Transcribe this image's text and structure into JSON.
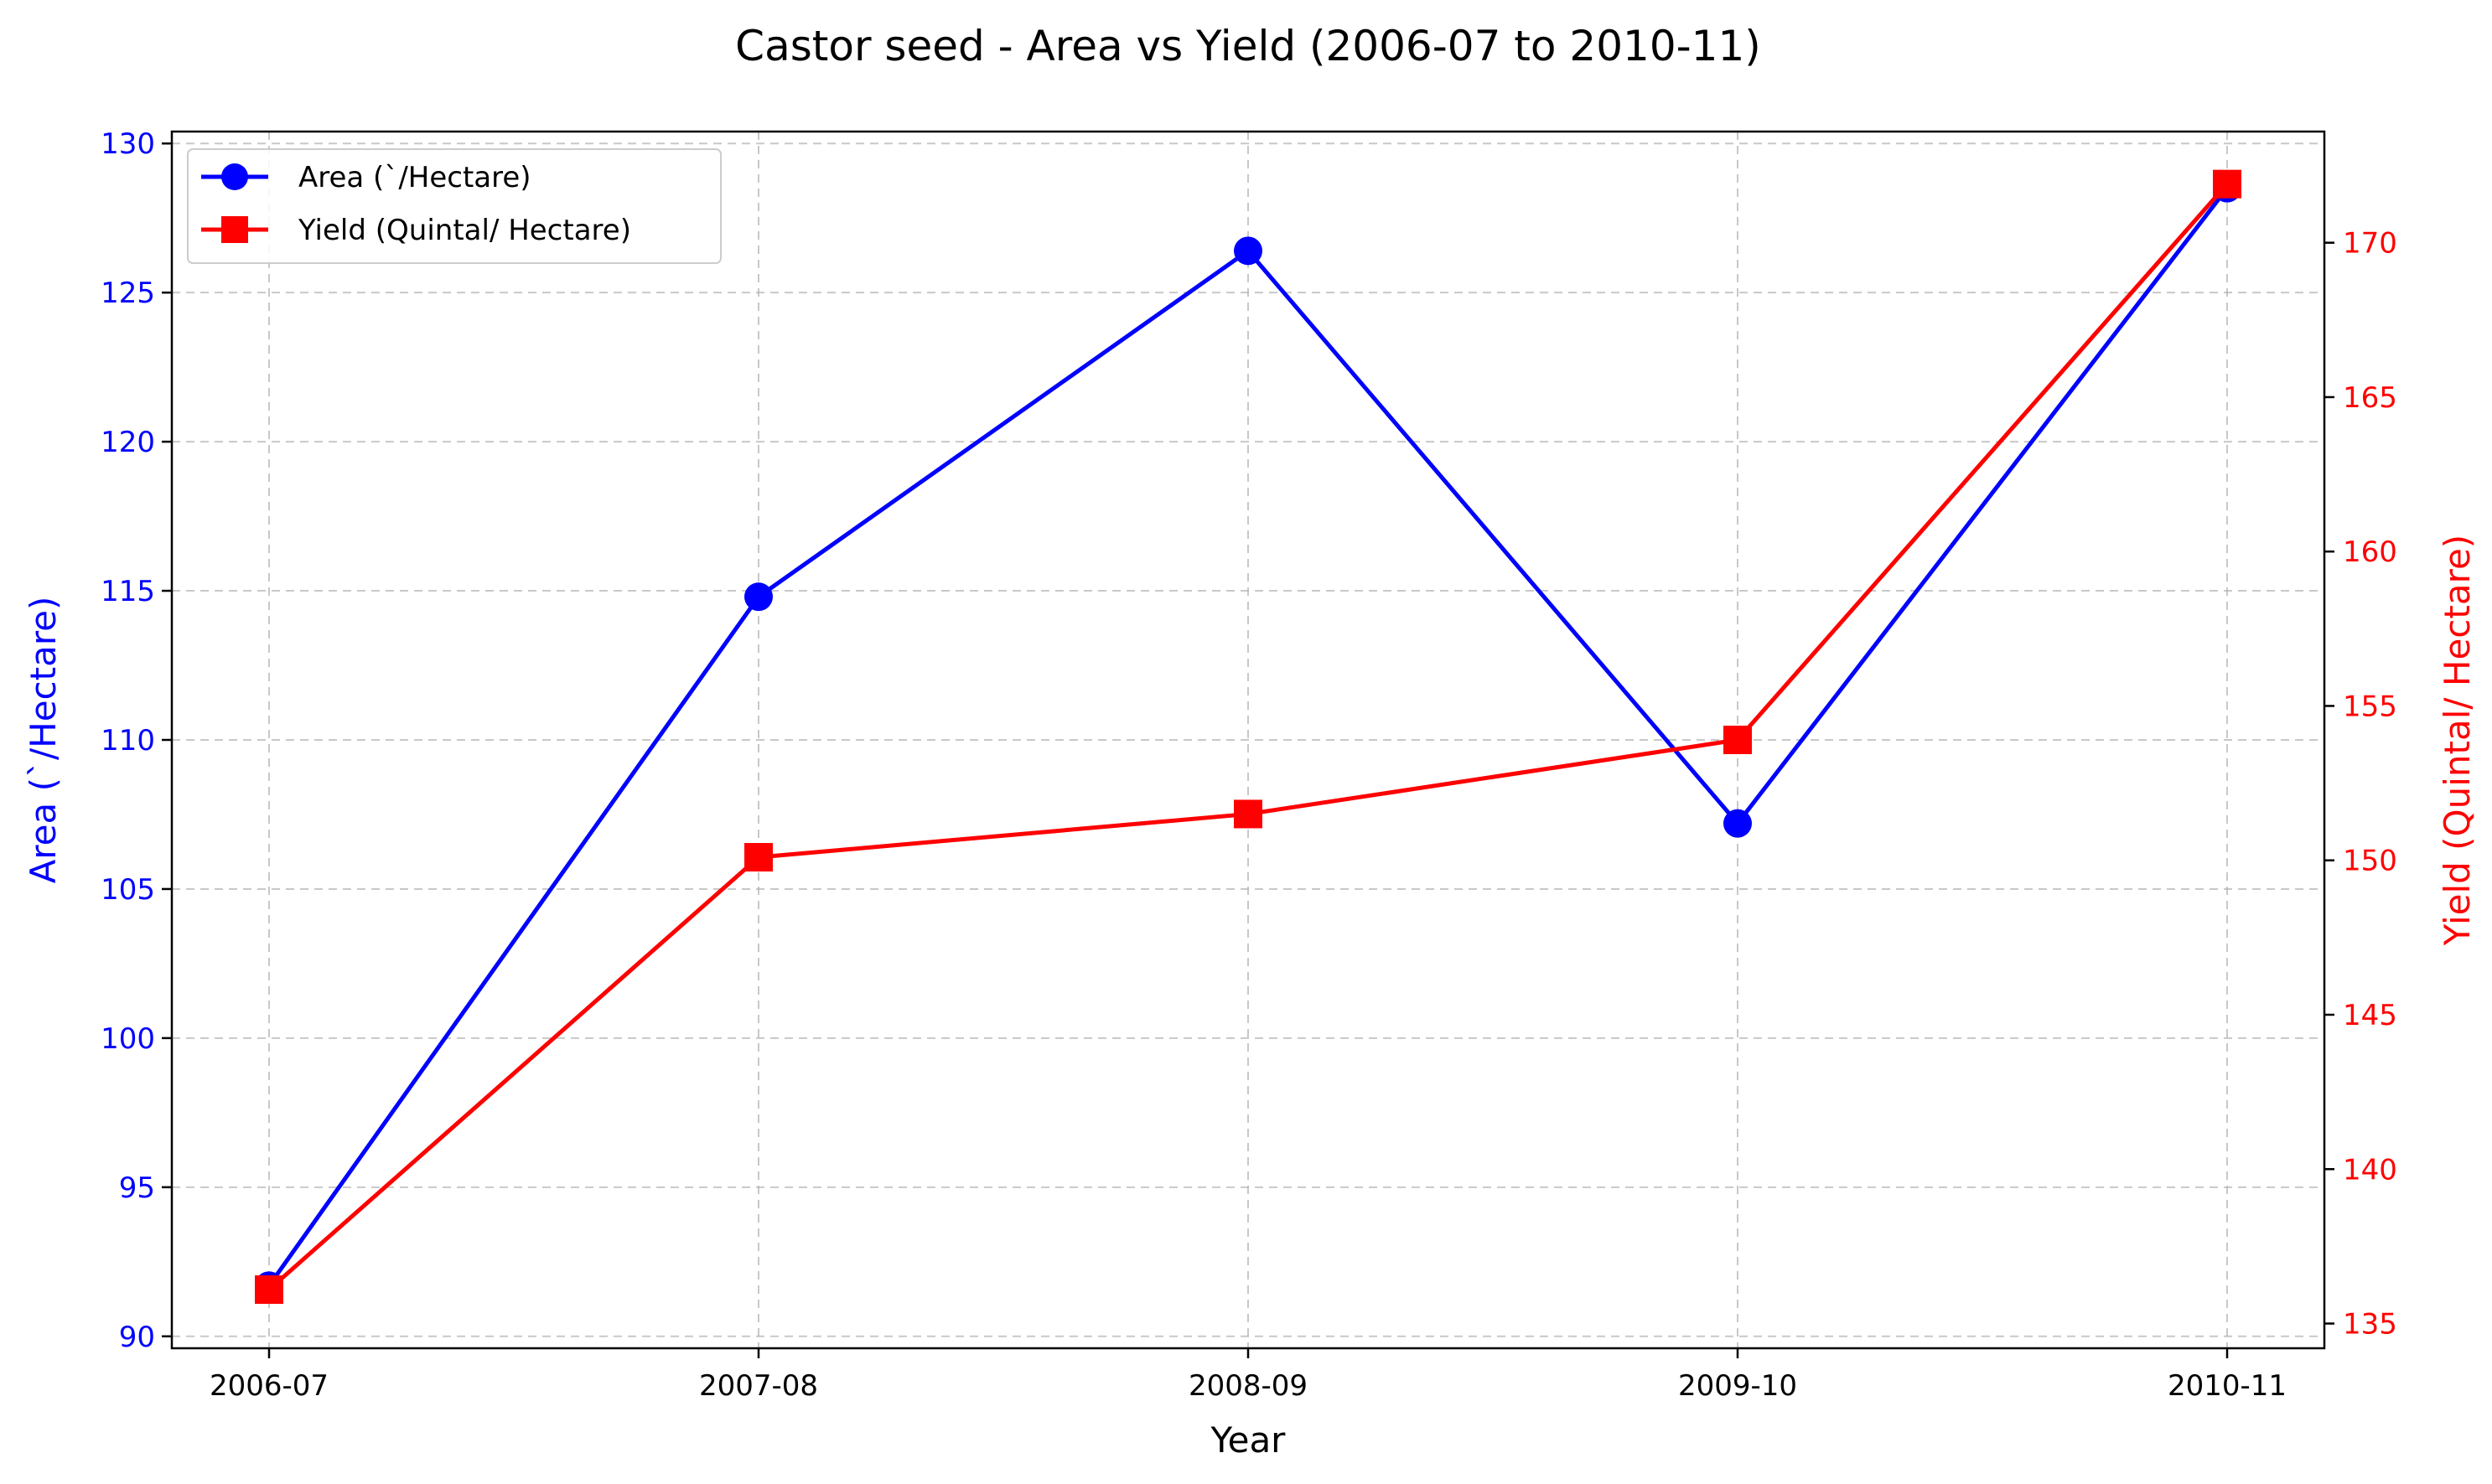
{
  "chart_data": {
    "type": "line",
    "title": "Castor seed - Area vs Yield (2006-07 to 2010-11)",
    "xlabel": "Year",
    "categories": [
      "2006-07",
      "2007-08",
      "2008-09",
      "2009-10",
      "2010-11"
    ],
    "left_axis": {
      "label": "Area (`/Hectare)",
      "color": "#0000ff",
      "range": [
        89.6,
        130.4
      ],
      "ticks": [
        90,
        95,
        100,
        105,
        110,
        115,
        120,
        125,
        130
      ]
    },
    "right_axis": {
      "label": "Yield (Quintal/ Hectare)",
      "color": "#ff0000",
      "range": [
        134.2,
        173.6
      ],
      "ticks": [
        135,
        140,
        145,
        150,
        155,
        160,
        165,
        170
      ]
    },
    "series": [
      {
        "name": "Area (`/Hectare)",
        "axis": "left",
        "color": "#0000ff",
        "marker": "circle",
        "values": [
          91.7,
          114.8,
          126.4,
          107.2,
          128.5
        ]
      },
      {
        "name": "Yield (Quintal/ Hectare)",
        "axis": "right",
        "color": "#ff0000",
        "marker": "square",
        "values": [
          136.1,
          150.1,
          151.5,
          153.9,
          171.9
        ]
      }
    ],
    "grid": true,
    "legend": "top-left"
  }
}
